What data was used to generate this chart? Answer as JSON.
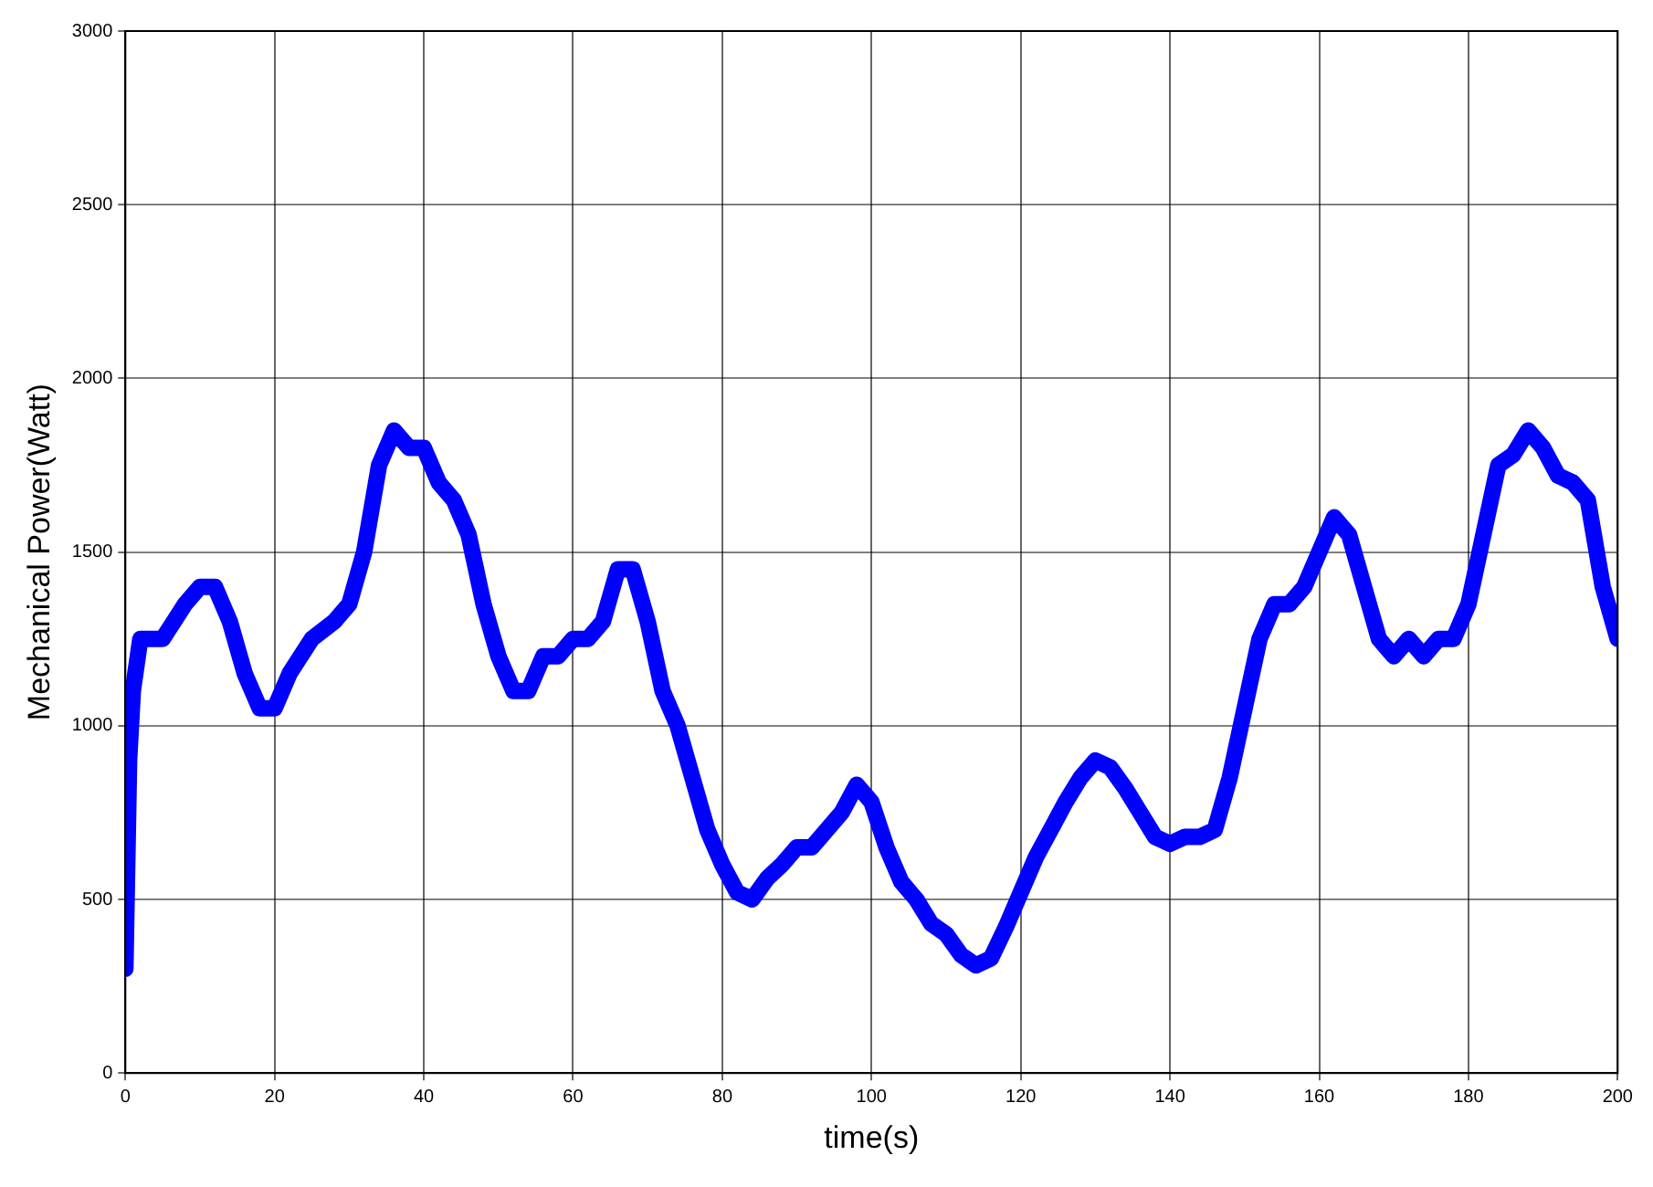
{
  "chart_data": {
    "type": "line",
    "xlabel": "time(s)",
    "ylabel": "Mechanical Power(Watt)",
    "xlim": [
      0,
      200
    ],
    "xticks": [
      0,
      20,
      40,
      60,
      80,
      100,
      120,
      140,
      160,
      180,
      200
    ],
    "ylim": [
      0,
      3000
    ],
    "yticks": [
      0,
      500,
      1000,
      1500,
      2000,
      2500,
      3000
    ],
    "grid": true,
    "legend": false,
    "marker": "none",
    "line_style": "solid",
    "series": [
      {
        "color": "#0000ff",
        "x": [
          0,
          0.5,
          1,
          2,
          5,
          8,
          10,
          12,
          14,
          16,
          18,
          20,
          22,
          25,
          28,
          30,
          32,
          34,
          36,
          38,
          40,
          42,
          44,
          46,
          48,
          50,
          52,
          54,
          56,
          58,
          60,
          62,
          64,
          66,
          68,
          70,
          72,
          74,
          76,
          78,
          80,
          82,
          84,
          86,
          88,
          90,
          92,
          94,
          96,
          98,
          100,
          102,
          104,
          106,
          108,
          110,
          112,
          114,
          116,
          118,
          120,
          122,
          124,
          126,
          128,
          130,
          132,
          134,
          136,
          138,
          140,
          142,
          144,
          146,
          148,
          150,
          152,
          154,
          156,
          158,
          160,
          162,
          164,
          166,
          168,
          170,
          172,
          174,
          176,
          178,
          180,
          182,
          184,
          186,
          188,
          190,
          192,
          194,
          196,
          198,
          200
        ],
        "values": [
          300,
          900,
          1100,
          1250,
          1250,
          1350,
          1400,
          1400,
          1300,
          1150,
          1050,
          1050,
          1150,
          1250,
          1300,
          1350,
          1500,
          1750,
          1850,
          1800,
          1800,
          1700,
          1650,
          1550,
          1350,
          1200,
          1100,
          1100,
          1200,
          1200,
          1250,
          1250,
          1300,
          1450,
          1450,
          1300,
          1100,
          1000,
          850,
          700,
          600,
          520,
          500,
          560,
          600,
          650,
          650,
          700,
          750,
          830,
          780,
          650,
          550,
          500,
          430,
          400,
          340,
          310,
          330,
          420,
          520,
          620,
          700,
          780,
          850,
          900,
          880,
          820,
          750,
          680,
          660,
          680,
          680,
          700,
          850,
          1050,
          1250,
          1350,
          1350,
          1400,
          1500,
          1600,
          1550,
          1400,
          1250,
          1200,
          1250,
          1200,
          1250,
          1250,
          1350,
          1550,
          1750,
          1780,
          1850,
          1800,
          1720,
          1700,
          1650,
          1400,
          1250
        ]
      }
    ]
  }
}
